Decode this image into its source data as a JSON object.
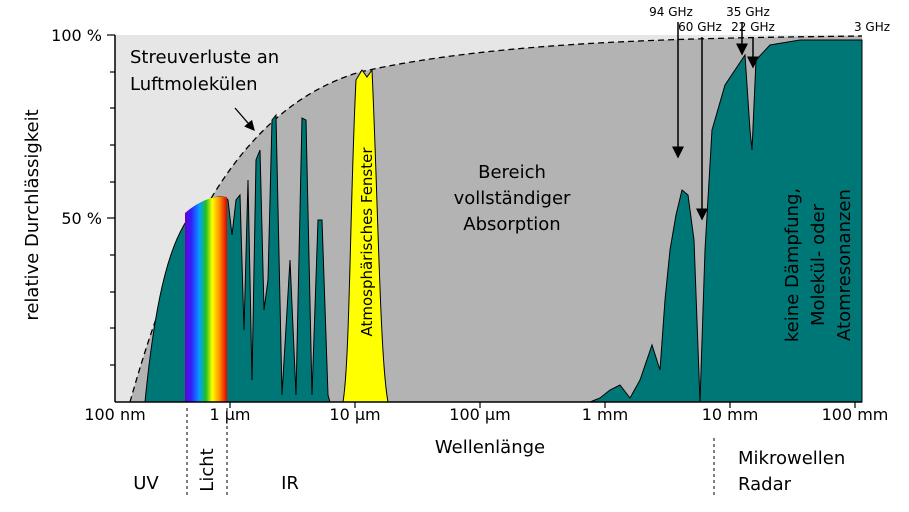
{
  "y_axis": {
    "label": "relative Durchlässigkeit",
    "ticks": [
      "100 %",
      "50 %"
    ]
  },
  "x_axis": {
    "label": "Wellenlänge",
    "ticks": [
      "100 nm",
      "1 µm",
      "10 µm",
      "100 µm",
      "1 mm",
      "10 mm",
      "100 mm"
    ]
  },
  "regions": {
    "uv": "UV",
    "light": "Licht",
    "ir": "IR",
    "microwave": [
      "Mikrowellen",
      "Radar"
    ]
  },
  "annotations": {
    "scattering": [
      "Streuverluste an",
      "Luftmolekülen"
    ],
    "window": "Atmosphärisches Fenster",
    "absorption": [
      "Bereich",
      "vollständiger",
      "Absorption"
    ],
    "no_damping": [
      "keine Dämpfung,",
      "Molekül- oder",
      "Atomresonanzen"
    ]
  },
  "frequencies": [
    "94 GHz",
    "60 GHz",
    "35 GHz",
    "22 GHz",
    "3 GHz"
  ]
}
